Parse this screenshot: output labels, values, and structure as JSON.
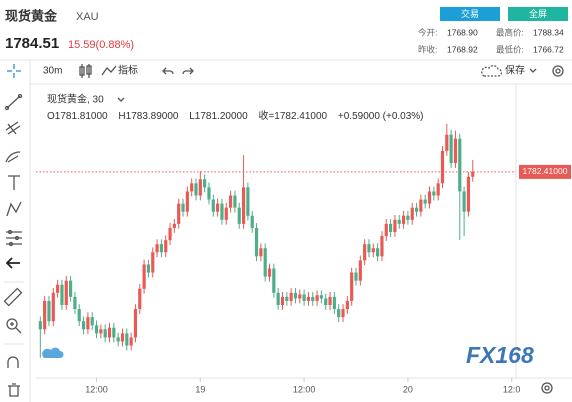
{
  "header": {
    "name": "现货黄金",
    "symbol": "XAU",
    "price": "1784.51",
    "change": "15.59(0.88%)",
    "buttons": [
      "交易",
      "全屏"
    ],
    "stats": [
      [
        "今开:",
        "1768.90",
        "最高价:",
        "1788.34"
      ],
      [
        "昨收:",
        "1768.92",
        "最低价:",
        "1766.72"
      ]
    ]
  },
  "toolbar": {
    "interval": "30m",
    "indicators": "指标",
    "save": "保存"
  },
  "watermark": "FX168",
  "chart_data": {
    "type": "candlestick",
    "title": "现货黄金, 30",
    "ohlc_legend": [
      "O1781.81000",
      "H1783.89000",
      "L1781.20000",
      "收=1782.41000",
      "+0.59000 (+0.03%)"
    ],
    "up_color": "#e95a57",
    "down_color": "#4fae8a",
    "x": [
      1,
      2,
      3,
      4,
      5,
      6,
      7,
      8,
      9,
      10,
      11,
      12,
      13,
      14,
      15,
      16,
      17,
      18,
      19,
      20,
      21,
      22,
      23,
      24,
      25,
      26,
      27,
      28,
      29,
      30,
      31,
      32,
      33,
      34,
      35,
      36,
      37,
      38,
      39,
      40,
      41,
      42,
      43,
      44,
      45,
      46,
      47,
      48,
      49,
      50,
      51,
      52,
      53,
      54,
      55,
      56,
      57,
      58,
      59,
      60,
      61,
      62,
      63,
      64,
      65,
      66,
      67,
      68,
      69,
      70,
      71,
      72,
      73,
      74,
      75,
      76,
      77,
      78,
      79,
      80,
      81,
      82,
      83,
      84,
      85,
      86,
      87,
      88,
      89,
      90,
      91,
      92,
      93,
      94,
      95,
      96,
      97,
      98,
      99,
      100,
      101
    ],
    "open": [
      1764.0,
      1763.0,
      1766.5,
      1764.0,
      1767.5,
      1768.5,
      1766.0,
      1769.0,
      1767.0,
      1765.5,
      1764.0,
      1763.0,
      1764.5,
      1763.5,
      1762.5,
      1763.0,
      1762.0,
      1763.2,
      1762.0,
      1761.5,
      1762.5,
      1761.0,
      1762.0,
      1765.5,
      1768.0,
      1771.0,
      1770.0,
      1772.5,
      1773.5,
      1772.5,
      1774.0,
      1775.5,
      1776.0,
      1778.5,
      1777.5,
      1780.0,
      1781.0,
      1779.5,
      1781.5,
      1780.5,
      1779.0,
      1777.5,
      1778.5,
      1776.5,
      1778.0,
      1779.5,
      1778.0,
      1776.0,
      1780.5,
      1777.0,
      1775.5,
      1772.0,
      1773.0,
      1769.5,
      1770.5,
      1767.5,
      1766.0,
      1767.0,
      1766.5,
      1767.5,
      1766.8,
      1767.3,
      1766.5,
      1767.0,
      1766.5,
      1767.2,
      1766.8,
      1766.0,
      1767.0,
      1765.5,
      1764.5,
      1765.5,
      1766.5,
      1770.0,
      1769.0,
      1771.5,
      1773.5,
      1772.5,
      1773.0,
      1772.0,
      1774.5,
      1776.0,
      1775.0,
      1776.5,
      1776.0,
      1777.0,
      1776.5,
      1778.0,
      1777.5,
      1779.0,
      1778.5,
      1780.0,
      1779.5,
      1781.0,
      1785.0,
      1787.0,
      1783.5,
      1786.5,
      1780.0,
      1777.5,
      1781.81
    ],
    "high": [
      1764.6,
      1767.1,
      1767.1,
      1768.1,
      1769.1,
      1769.1,
      1769.6,
      1769.6,
      1767.6,
      1766.1,
      1764.6,
      1765.1,
      1765.1,
      1764.1,
      1763.6,
      1763.6,
      1763.8,
      1763.8,
      1762.6,
      1763.1,
      1763.1,
      1762.6,
      1766.1,
      1768.6,
      1771.6,
      1771.6,
      1773.1,
      1774.1,
      1774.1,
      1774.6,
      1776.1,
      1776.6,
      1779.1,
      1779.1,
      1780.6,
      1781.6,
      1781.6,
      1782.5,
      1782.1,
      1781.1,
      1779.6,
      1779.1,
      1779.1,
      1778.6,
      1780.1,
      1780.1,
      1778.6,
      1784.5,
      1781.1,
      1777.6,
      1776.1,
      1773.6,
      1773.6,
      1771.1,
      1771.1,
      1768.1,
      1767.6,
      1767.6,
      1768.1,
      1768.1,
      1767.9,
      1767.9,
      1767.6,
      1767.6,
      1767.8,
      1767.8,
      1767.4,
      1767.6,
      1767.6,
      1766.1,
      1766.1,
      1767.1,
      1770.6,
      1770.6,
      1772.1,
      1774.1,
      1774.1,
      1773.6,
      1773.6,
      1775.1,
      1776.6,
      1776.6,
      1777.1,
      1777.1,
      1777.6,
      1777.6,
      1778.6,
      1778.6,
      1779.6,
      1779.6,
      1780.6,
      1780.6,
      1781.6,
      1785.6,
      1788.34,
      1787.6,
      1787.5,
      1787.1,
      1780.6,
      1782.4,
      1783.89
    ],
    "low": [
      1759.5,
      1762.4,
      1763.4,
      1763.4,
      1766.9,
      1765.4,
      1765.4,
      1766.4,
      1764.9,
      1763.4,
      1762.4,
      1762.4,
      1762.9,
      1761.9,
      1761.9,
      1761.4,
      1761.4,
      1761.4,
      1760.9,
      1760.9,
      1760.4,
      1760.4,
      1761.4,
      1764.9,
      1767.4,
      1769.4,
      1769.4,
      1771.9,
      1771.9,
      1771.9,
      1773.4,
      1774.9,
      1775.4,
      1776.9,
      1776.9,
      1779.4,
      1778.9,
      1778.9,
      1779.9,
      1778.4,
      1776.9,
      1776.9,
      1775.9,
      1775.9,
      1777.4,
      1777.4,
      1775.4,
      1775.4,
      1776.4,
      1774.9,
      1771.4,
      1771.4,
      1768.9,
      1768.9,
      1766.9,
      1765.4,
      1765.4,
      1765.9,
      1765.9,
      1766.2,
      1766.2,
      1765.9,
      1765.9,
      1765.9,
      1765.9,
      1766.2,
      1765.4,
      1765.4,
      1764.9,
      1763.9,
      1763.9,
      1764.9,
      1765.9,
      1768.4,
      1768.4,
      1770.9,
      1771.9,
      1771.9,
      1771.4,
      1771.4,
      1773.9,
      1774.4,
      1774.4,
      1775.4,
      1775.4,
      1775.9,
      1775.9,
      1776.9,
      1776.9,
      1777.9,
      1777.9,
      1778.9,
      1778.9,
      1780.4,
      1784.4,
      1782.9,
      1782.9,
      1774.0,
      1774.5,
      1776.9,
      1781.2
    ],
    "close": [
      1763.0,
      1766.5,
      1764.0,
      1767.5,
      1768.5,
      1766.0,
      1769.0,
      1767.0,
      1765.5,
      1764.0,
      1763.0,
      1764.5,
      1763.5,
      1762.5,
      1763.0,
      1762.0,
      1763.2,
      1762.0,
      1761.5,
      1762.5,
      1761.0,
      1762.0,
      1765.5,
      1768.0,
      1771.0,
      1770.0,
      1772.5,
      1773.5,
      1772.5,
      1774.0,
      1775.5,
      1776.0,
      1778.5,
      1777.5,
      1780.0,
      1781.0,
      1779.5,
      1781.5,
      1780.5,
      1779.0,
      1777.5,
      1778.5,
      1776.5,
      1778.0,
      1779.5,
      1778.0,
      1776.0,
      1780.5,
      1777.0,
      1775.5,
      1772.0,
      1773.0,
      1769.5,
      1770.5,
      1767.5,
      1766.0,
      1767.0,
      1766.5,
      1767.5,
      1766.8,
      1767.3,
      1766.5,
      1767.0,
      1766.5,
      1767.2,
      1766.8,
      1766.0,
      1767.0,
      1765.5,
      1764.5,
      1765.5,
      1766.5,
      1770.0,
      1769.0,
      1771.5,
      1773.5,
      1772.5,
      1773.0,
      1772.0,
      1774.5,
      1776.0,
      1775.0,
      1776.5,
      1776.0,
      1777.0,
      1776.5,
      1778.0,
      1777.5,
      1779.0,
      1778.5,
      1780.0,
      1779.5,
      1781.0,
      1785.0,
      1787.0,
      1783.5,
      1786.5,
      1780.0,
      1777.5,
      1781.81,
      1782.41
    ],
    "price_line": {
      "value": 1782.41,
      "label": "1782.41000"
    },
    "xlim": [
      0,
      111
    ],
    "ylim": [
      1757,
      1793
    ],
    "xticks": [
      {
        "value": 14,
        "label": "12:00"
      },
      {
        "value": 38,
        "label": "19"
      },
      {
        "value": 62,
        "label": "12:00"
      },
      {
        "value": 86,
        "label": "20"
      },
      {
        "value": 110,
        "label": "12:0"
      }
    ]
  }
}
